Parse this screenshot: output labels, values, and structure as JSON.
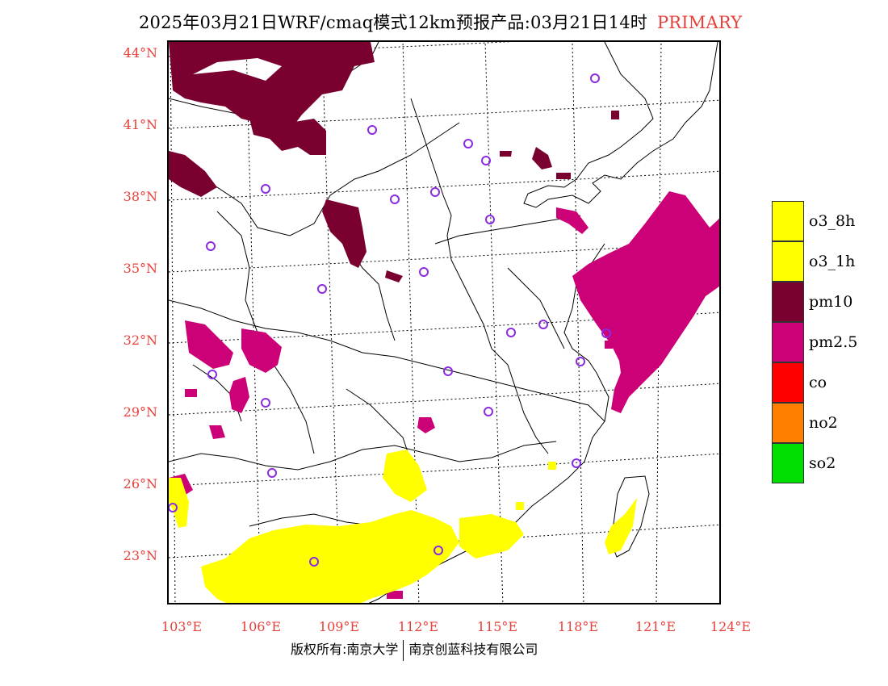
{
  "title": {
    "text": "2025年03月21日WRF/cmaq模式12km预报产品:03月21日14时",
    "tag": "PRIMARY"
  },
  "axes": {
    "y_labels": [
      "44°N",
      "41°N",
      "38°N",
      "35°N",
      "32°N",
      "29°N",
      "26°N",
      "23°N"
    ],
    "x_labels": [
      "103°E",
      "106°E",
      "109°E",
      "112°E",
      "115°E",
      "118°E",
      "121°E",
      "124°E"
    ]
  },
  "legend": [
    {
      "label": "o3_8h",
      "color": "#ffff00"
    },
    {
      "label": "o3_1h",
      "color": "#ffff00"
    },
    {
      "label": "pm10",
      "color": "#7a0030"
    },
    {
      "label": "pm2.5",
      "color": "#cc0077"
    },
    {
      "label": "co",
      "color": "#ff0000"
    },
    {
      "label": "no2",
      "color": "#ff7f00"
    },
    {
      "label": "so2",
      "color": "#00dd00"
    }
  ],
  "colors": {
    "label_red": "#e8403a",
    "pm10": "#7a0030",
    "pm25": "#cc0077",
    "o3": "#ffff00",
    "station_ring": "#8a2be2"
  },
  "copyright": {
    "left": "版权所有:南京大学",
    "right": "南京创蓝科技有限公司"
  }
}
